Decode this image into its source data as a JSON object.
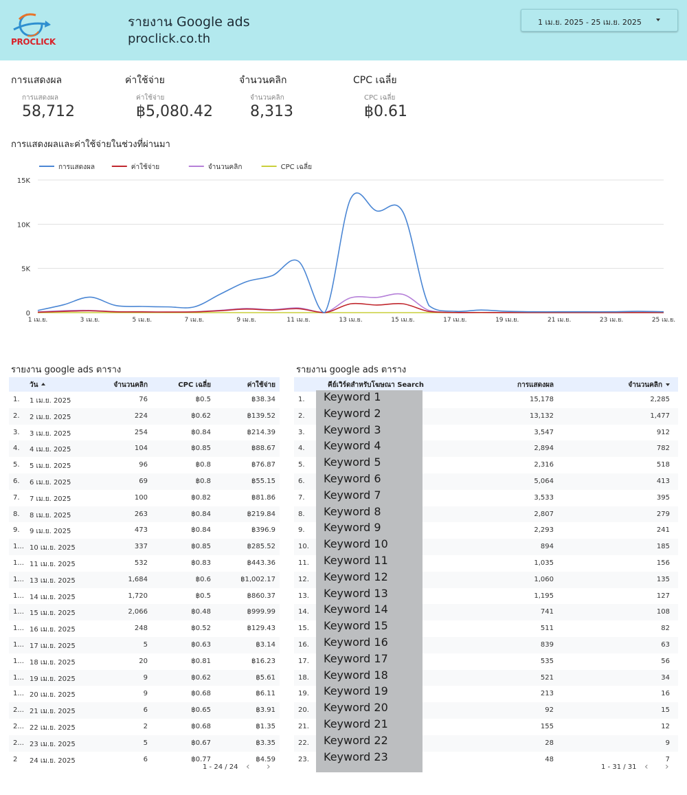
{
  "header": {
    "logo_text": "PROCLICK",
    "title": "รายงาน Google ads",
    "subtitle": "proclick.co.th",
    "date_range": "1 เม.ย. 2025 - 25 เม.ย. 2025"
  },
  "scorecards": [
    {
      "title": "การแสดงผล",
      "label": "การแสดงผล",
      "value": "58,712"
    },
    {
      "title": "ค่าใช้จ่าย",
      "label": "ค่าใช้จ่าย",
      "value": "฿5,080.42"
    },
    {
      "title": "จำนวนคลิก",
      "label": "จำนวนคลิก",
      "value": "8,313"
    },
    {
      "title": "CPC เฉลี่ย",
      "label": "CPC เฉลี่ย",
      "value": "฿0.61"
    }
  ],
  "chart_section_title": "การแสดงผลและค่าใช้จ่ายในช่วงที่ผ่านมา",
  "chart_data": {
    "type": "line",
    "x": [
      "1 เม.ย.",
      "2",
      "3 เม.ย.",
      "4",
      "5 เม.ย.",
      "6",
      "7 เม.ย.",
      "8",
      "9 เม.ย.",
      "10",
      "11 เม.ย.",
      "12",
      "13 เม.ย.",
      "14",
      "15 เม.ย.",
      "16",
      "17 เม.ย.",
      "18",
      "19 เม.ย.",
      "20",
      "21 เม.ย.",
      "22",
      "23 เม.ย.",
      "24",
      "25 เม.ย."
    ],
    "x_tick_labels": [
      "1 เม.ย.",
      "3 เม.ย.",
      "5 เม.ย.",
      "7 เม.ย.",
      "9 เม.ย.",
      "11 เม.ย.",
      "13 เม.ย.",
      "15 เม.ย.",
      "17 เม.ย.",
      "19 เม.ย.",
      "21 เม.ย.",
      "23 เม.ย.",
      "25 เม.ย."
    ],
    "ylim": [
      0,
      15000
    ],
    "y_ticks": [
      {
        "v": 0,
        "label": "0"
      },
      {
        "v": 5000,
        "label": "5K"
      },
      {
        "v": 10000,
        "label": "10K"
      },
      {
        "v": 15000,
        "label": "15K"
      }
    ],
    "grid": true,
    "legend_position": "top-left",
    "series": [
      {
        "name": "การแสดงผล",
        "color": "#4a86d4",
        "values": [
          250,
          900,
          1750,
          800,
          700,
          650,
          650,
          2100,
          3500,
          4200,
          5800,
          0,
          12900,
          11500,
          11400,
          800,
          150,
          300,
          150,
          100,
          100,
          100,
          100,
          150,
          100
        ]
      },
      {
        "name": "ค่าใช้จ่าย",
        "color": "#c0262d",
        "values": [
          40,
          140,
          210,
          90,
          80,
          60,
          80,
          220,
          400,
          290,
          440,
          0,
          1000,
          860,
          1000,
          130,
          20,
          20,
          10,
          10,
          10,
          10,
          10,
          10,
          10
        ]
      },
      {
        "name": "จำนวนคลิก",
        "color": "#b57fd8",
        "values": [
          80,
          220,
          250,
          110,
          100,
          70,
          100,
          260,
          470,
          340,
          530,
          0,
          1680,
          1720,
          2070,
          250,
          10,
          20,
          10,
          10,
          10,
          10,
          10,
          10,
          10
        ]
      },
      {
        "name": "CPC เฉลี่ย",
        "color": "#c9cf3a",
        "values": [
          0.5,
          0.62,
          0.84,
          0.85,
          0.8,
          0.8,
          0.82,
          0.84,
          0.84,
          0.85,
          0.83,
          0,
          0.6,
          0.5,
          0.48,
          0.52,
          0.63,
          0.81,
          0.62,
          0.68,
          0.65,
          0.68,
          0.67,
          0.77,
          0.7
        ]
      }
    ]
  },
  "table_left": {
    "title": "รายงาน google ads ตาราง",
    "headers": [
      "วัน",
      "จำนวนคลิก",
      "CPC เฉลี่ย",
      "ค่าใช้จ่าย"
    ],
    "rows": [
      [
        "1.",
        "1 เม.ย. 2025",
        "76",
        "฿0.5",
        "฿38.34"
      ],
      [
        "2.",
        "2 เม.ย. 2025",
        "224",
        "฿0.62",
        "฿139.52"
      ],
      [
        "3.",
        "3 เม.ย. 2025",
        "254",
        "฿0.84",
        "฿214.39"
      ],
      [
        "4.",
        "4 เม.ย. 2025",
        "104",
        "฿0.85",
        "฿88.67"
      ],
      [
        "5.",
        "5 เม.ย. 2025",
        "96",
        "฿0.8",
        "฿76.87"
      ],
      [
        "6.",
        "6 เม.ย. 2025",
        "69",
        "฿0.8",
        "฿55.15"
      ],
      [
        "7.",
        "7 เม.ย. 2025",
        "100",
        "฿0.82",
        "฿81.86"
      ],
      [
        "8.",
        "8 เม.ย. 2025",
        "263",
        "฿0.84",
        "฿219.84"
      ],
      [
        "9.",
        "9 เม.ย. 2025",
        "473",
        "฿0.84",
        "฿396.9"
      ],
      [
        "1...",
        "10 เม.ย. 2025",
        "337",
        "฿0.85",
        "฿285.52"
      ],
      [
        "1...",
        "11 เม.ย. 2025",
        "532",
        "฿0.83",
        "฿443.36"
      ],
      [
        "1...",
        "13 เม.ย. 2025",
        "1,684",
        "฿0.6",
        "฿1,002.17"
      ],
      [
        "1...",
        "14 เม.ย. 2025",
        "1,720",
        "฿0.5",
        "฿860.37"
      ],
      [
        "1...",
        "15 เม.ย. 2025",
        "2,066",
        "฿0.48",
        "฿999.99"
      ],
      [
        "1...",
        "16 เม.ย. 2025",
        "248",
        "฿0.52",
        "฿129.43"
      ],
      [
        "1...",
        "17 เม.ย. 2025",
        "5",
        "฿0.63",
        "฿3.14"
      ],
      [
        "1...",
        "18 เม.ย. 2025",
        "20",
        "฿0.81",
        "฿16.23"
      ],
      [
        "1...",
        "19 เม.ย. 2025",
        "9",
        "฿0.62",
        "฿5.61"
      ],
      [
        "1...",
        "20 เม.ย. 2025",
        "9",
        "฿0.68",
        "฿6.11"
      ],
      [
        "2...",
        "21 เม.ย. 2025",
        "6",
        "฿0.65",
        "฿3.91"
      ],
      [
        "2...",
        "22 เม.ย. 2025",
        "2",
        "฿0.68",
        "฿1.35"
      ],
      [
        "2...",
        "23 เม.ย. 2025",
        "5",
        "฿0.67",
        "฿3.35"
      ],
      [
        "2",
        "24 เม.ย. 2025",
        "6",
        "฿0.77",
        "฿4.59"
      ]
    ],
    "pager": "1 - 24 / 24"
  },
  "table_right": {
    "title": "รายงาน google ads ตาราง",
    "headers": [
      "คีย์เวิร์ดสำหรับโฆษณา Search",
      "การแสดงผล",
      "จำนวนคลิก"
    ],
    "rows": [
      [
        "1.",
        "Keyword 1",
        "15,178",
        "2,285"
      ],
      [
        "2.",
        "Keyword 2",
        "13,132",
        "1,477"
      ],
      [
        "3.",
        "Keyword 3",
        "3,547",
        "912"
      ],
      [
        "4.",
        "Keyword 4",
        "2,894",
        "782"
      ],
      [
        "5.",
        "Keyword 5",
        "2,316",
        "518"
      ],
      [
        "6.",
        "Keyword 6",
        "5,064",
        "413"
      ],
      [
        "7.",
        "Keyword 7",
        "3,533",
        "395"
      ],
      [
        "8.",
        "Keyword 8",
        "2,807",
        "279"
      ],
      [
        "9.",
        "Keyword 9",
        "2,293",
        "241"
      ],
      [
        "10.",
        "Keyword 10",
        "894",
        "185"
      ],
      [
        "11.",
        "Keyword 11",
        "1,035",
        "156"
      ],
      [
        "12.",
        "Keyword 12",
        "1,060",
        "135"
      ],
      [
        "13.",
        "Keyword 13",
        "1,195",
        "127"
      ],
      [
        "14.",
        "Keyword 14",
        "741",
        "108"
      ],
      [
        "15.",
        "Keyword 15",
        "511",
        "82"
      ],
      [
        "16.",
        "Keyword 16",
        "839",
        "63"
      ],
      [
        "17.",
        "Keyword 17",
        "535",
        "56"
      ],
      [
        "18.",
        "Keyword 18",
        "521",
        "34"
      ],
      [
        "19.",
        "Keyword 19",
        "213",
        "16"
      ],
      [
        "20.",
        "Keyword 20",
        "92",
        "15"
      ],
      [
        "21.",
        "Keyword 21",
        "155",
        "12"
      ],
      [
        "22.",
        "Keyword 22",
        "28",
        "9"
      ],
      [
        "23.",
        "Keyword 23",
        "48",
        "7"
      ]
    ],
    "pager": "1 - 31 / 31"
  }
}
